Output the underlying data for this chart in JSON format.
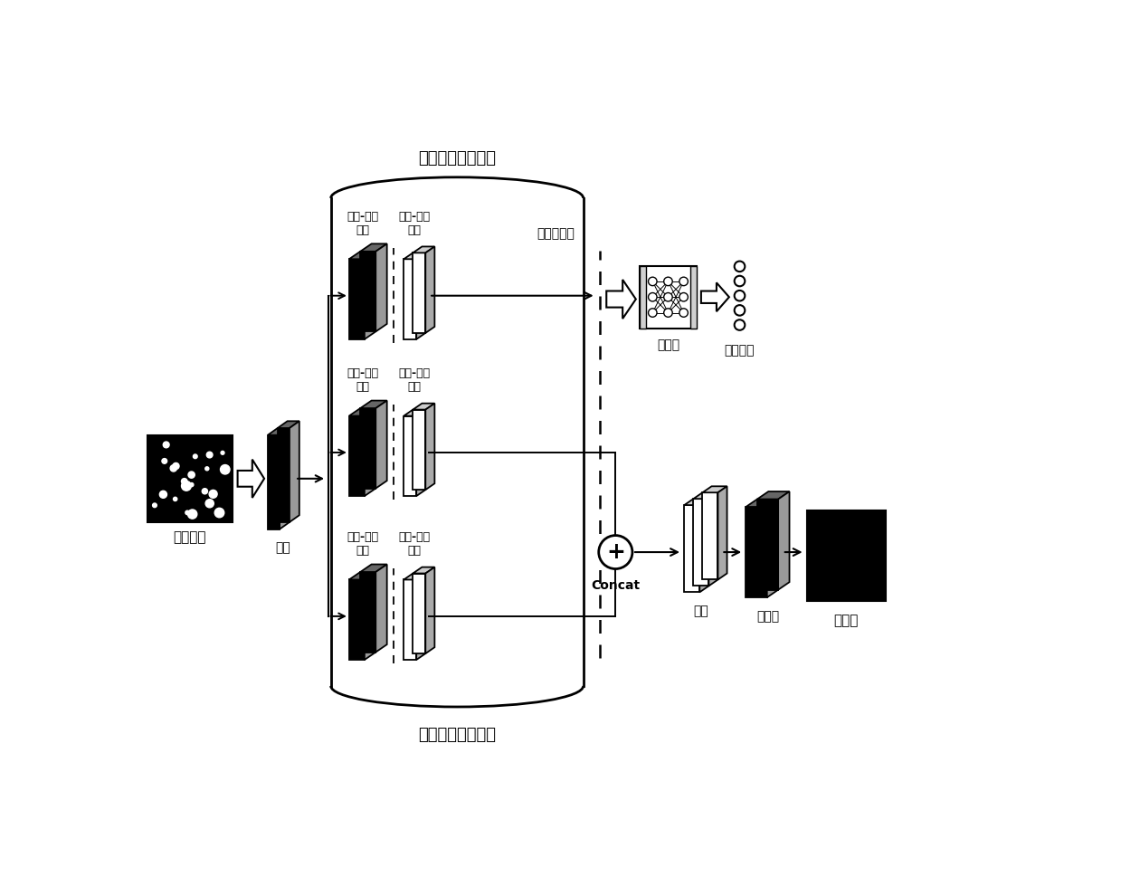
{
  "bg_color": "#ffffff",
  "label_top": "全局密度特征提取",
  "label_bottom": "人群计数特征提取",
  "label_input": "输入图像",
  "label_conv": "卷积",
  "label_fc": "全连接",
  "label_cls": "分类输出",
  "label_concat": "Concat",
  "label_conv2": "卷积",
  "label_deconv": "反卷积",
  "label_density": "密度图",
  "label_adaptive": "自适应池化",
  "label_pool1a": "最大-均値",
  "label_pool1b": "池化",
  "label_pool2a": "最大-均値",
  "label_pool2b": "池化"
}
